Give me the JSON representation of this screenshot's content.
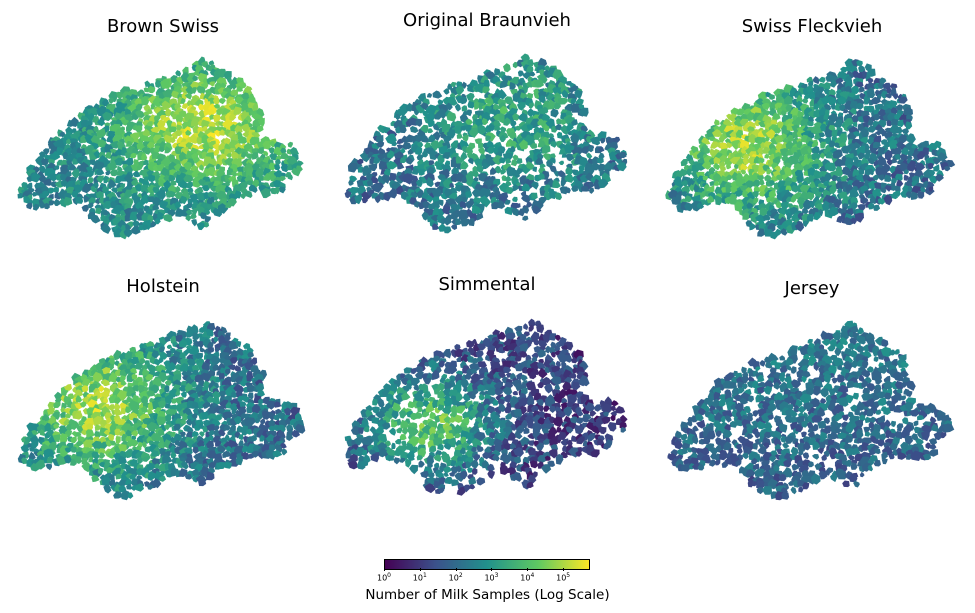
{
  "panels": [
    {
      "title": "Brown Swiss",
      "intensity": "east-high"
    },
    {
      "title": "Original Braunvieh",
      "intensity": "east-mid"
    },
    {
      "title": "Swiss Fleckvieh",
      "intensity": "west-high"
    },
    {
      "title": "Holstein",
      "intensity": "west-high"
    },
    {
      "title": "Simmental",
      "intensity": "southwest-mid"
    },
    {
      "title": "Jersey",
      "intensity": "low"
    }
  ],
  "colorbar": {
    "label": "Number of Milk Samples (Log Scale)",
    "scale": "log",
    "ticks": [
      {
        "base": "10",
        "exp": "0"
      },
      {
        "base": "10",
        "exp": "1"
      },
      {
        "base": "10",
        "exp": "2"
      },
      {
        "base": "10",
        "exp": "3"
      },
      {
        "base": "10",
        "exp": "4"
      },
      {
        "base": "10",
        "exp": "5"
      }
    ],
    "colormap": [
      "#440154",
      "#3b528b",
      "#21918c",
      "#5ec962",
      "#fde725"
    ]
  }
}
